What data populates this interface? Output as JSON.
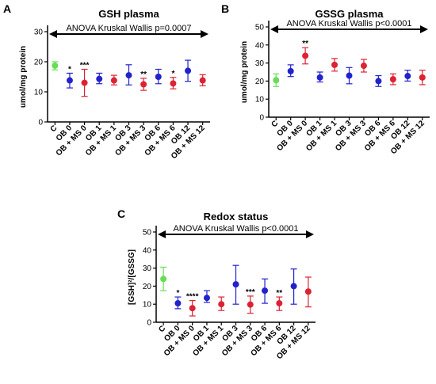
{
  "colors": {
    "control": "#66dd55",
    "ob": "#2222cc",
    "ob_ms": "#dd2233",
    "axis": "#000000"
  },
  "chart_data": [
    {
      "panel": "A",
      "type": "scatter",
      "title": "GSH plasma",
      "annotation": "ANOVA Kruskal Wallis p=0.0007",
      "ylabel": "umol/mg protein",
      "xlabel": "",
      "ylim": [
        0,
        30
      ],
      "yticks": [
        0,
        10,
        20,
        30
      ],
      "grid": false,
      "categories": [
        "C",
        "OB 0",
        "OB + MS 0",
        "OB 1",
        "OB + MS 1",
        "OB 3",
        "OB + MS 3",
        "OB 6",
        "OB + MS 6",
        "OB 12",
        "OB + MS 12"
      ],
      "groups": [
        "control",
        "ob",
        "ob_ms",
        "ob",
        "ob_ms",
        "ob",
        "ob_ms",
        "ob",
        "ob_ms",
        "ob",
        "ob_ms"
      ],
      "means": [
        18.7,
        13.8,
        13.0,
        14.3,
        13.8,
        15.5,
        12.5,
        15.0,
        12.8,
        17.0,
        13.8
      ],
      "err_low": [
        17.3,
        11.3,
        8.5,
        12.7,
        12.3,
        12.3,
        10.5,
        12.7,
        11.0,
        13.5,
        12.0
      ],
      "err_high": [
        20.0,
        16.2,
        17.5,
        16.2,
        15.5,
        19.0,
        14.5,
        17.5,
        14.8,
        20.5,
        15.7
      ],
      "significance": [
        "",
        "*",
        "***",
        "",
        "",
        "",
        "**",
        "",
        "*",
        "",
        ""
      ]
    },
    {
      "panel": "B",
      "type": "scatter",
      "title": "GSSG plasma",
      "annotation": "ANOVA Kruskal Wallis p<0.0001",
      "ylabel": "umol/mg protein",
      "xlabel": "",
      "ylim": [
        0,
        50
      ],
      "yticks": [
        0,
        10,
        20,
        30,
        40,
        50
      ],
      "grid": false,
      "categories": [
        "C",
        "OB 0",
        "OB + MS 0",
        "OB 1",
        "OB + MS 1",
        "OB 3",
        "OB + MS 3",
        "OB 6",
        "OB + MS 6",
        "OB 12",
        "OB + MS 12"
      ],
      "groups": [
        "control",
        "ob",
        "ob_ms",
        "ob",
        "ob_ms",
        "ob",
        "ob_ms",
        "ob",
        "ob_ms",
        "ob",
        "ob_ms"
      ],
      "means": [
        20.5,
        25.5,
        34.0,
        22.0,
        29.0,
        23.0,
        28.5,
        20.0,
        21.0,
        22.8,
        22.0
      ],
      "err_low": [
        17.0,
        22.5,
        29.5,
        19.5,
        25.5,
        18.5,
        25.0,
        17.0,
        18.0,
        20.0,
        18.0
      ],
      "err_high": [
        24.0,
        29.0,
        38.5,
        25.0,
        32.5,
        27.5,
        32.0,
        23.0,
        24.0,
        26.0,
        26.0
      ],
      "significance": [
        "",
        "",
        "**",
        "",
        "",
        "",
        "",
        "",
        "",
        "",
        ""
      ]
    },
    {
      "panel": "C",
      "type": "scatter",
      "title": "Redox status",
      "annotation": "ANOVA Kruskal Wallis p<0.0001",
      "ylabel": "[GSH]²/[GSSG]",
      "xlabel": "",
      "ylim": [
        0,
        50
      ],
      "yticks": [
        0,
        10,
        20,
        30,
        40,
        50
      ],
      "grid": false,
      "categories": [
        "C",
        "OB 0",
        "OB + MS 0",
        "OB 1",
        "OB + MS 1",
        "OB 3",
        "OB + MS 3",
        "OB 6",
        "OB + MS 6",
        "OB 12",
        "OB + MS 12"
      ],
      "groups": [
        "control",
        "ob",
        "ob_ms",
        "ob",
        "ob_ms",
        "ob",
        "ob_ms",
        "ob",
        "ob_ms",
        "ob",
        "ob_ms"
      ],
      "means": [
        24.0,
        10.5,
        7.8,
        13.5,
        10.0,
        21.0,
        9.8,
        17.5,
        10.5,
        20.0,
        17.0
      ],
      "err_low": [
        17.5,
        7.5,
        3.5,
        11.0,
        6.5,
        10.0,
        5.0,
        10.5,
        6.5,
        10.0,
        8.5
      ],
      "err_high": [
        30.5,
        14.0,
        12.0,
        17.5,
        14.0,
        31.5,
        14.5,
        24.0,
        14.0,
        29.5,
        25.0
      ],
      "significance": [
        "",
        "*",
        "****",
        "",
        "",
        "",
        "***",
        "",
        "**",
        "",
        ""
      ]
    }
  ]
}
